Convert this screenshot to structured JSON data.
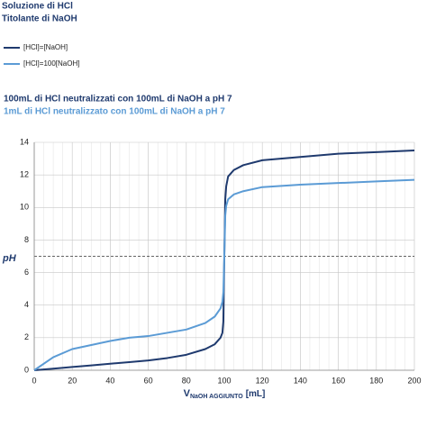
{
  "chart_data": {
    "type": "line",
    "title": "Soluzione di HCl",
    "subtitle": "Titolante di NaOH",
    "annotations": [
      "100mL di HCl neutralizzati con 100mL di NaOH a pH 7",
      "1mL di HCl neutralizzato con 100mL di NaOH a pH 7"
    ],
    "x_label": [
      "V",
      "NaOH AGGIUNTO",
      "[mL]"
    ],
    "y_label": "pH",
    "x": [
      0,
      10,
      20,
      30,
      40,
      50,
      60,
      70,
      80,
      90,
      95,
      98,
      99,
      99.5,
      100,
      100.5,
      101,
      102,
      105,
      110,
      120,
      140,
      160,
      180,
      200
    ],
    "series": [
      {
        "name": "[HCl]=[NaOH]",
        "color": "#1f3a6e",
        "values": [
          0,
          0.1,
          0.2,
          0.3,
          0.4,
          0.5,
          0.6,
          0.75,
          0.95,
          1.3,
          1.6,
          2.0,
          2.3,
          3.0,
          7,
          10.5,
          11.3,
          11.9,
          12.3,
          12.6,
          12.9,
          13.1,
          13.3,
          13.4,
          13.5
        ]
      },
      {
        "name": "[HCl]=100[NaOH]",
        "color": "#5b9bd5",
        "values": [
          0,
          0.8,
          1.3,
          1.55,
          1.8,
          2.0,
          2.1,
          2.3,
          2.5,
          2.9,
          3.3,
          3.8,
          4.2,
          4.8,
          7,
          9.5,
          10.1,
          10.5,
          10.8,
          11.0,
          11.25,
          11.4,
          11.5,
          11.6,
          11.7
        ]
      }
    ],
    "xlim": [
      0,
      200
    ],
    "ylim": [
      0,
      14
    ],
    "xticks": [
      0,
      20,
      40,
      60,
      80,
      100,
      120,
      140,
      160,
      180,
      200
    ],
    "yticks": [
      0,
      2,
      4,
      6,
      8,
      10,
      12,
      14
    ],
    "grid": true,
    "minor_grid_step": 5,
    "reference_line": 7
  }
}
